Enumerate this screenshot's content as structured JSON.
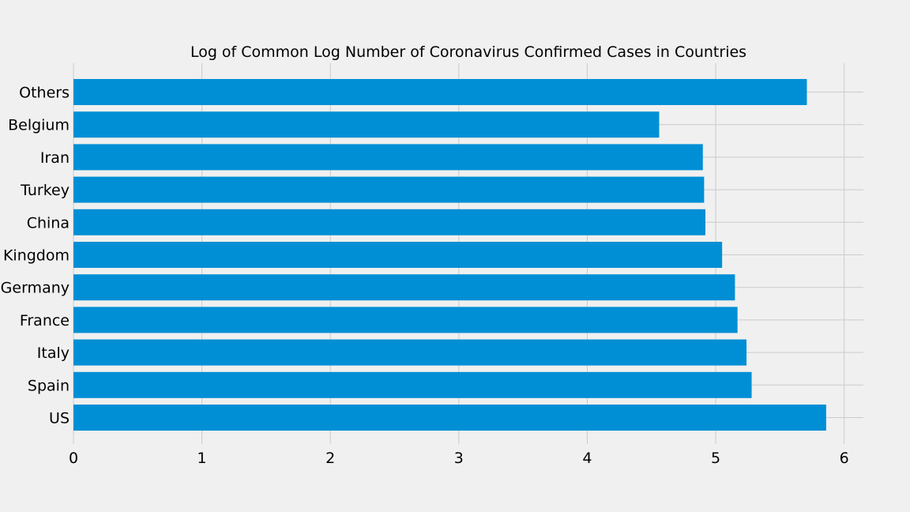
{
  "chart_data": {
    "type": "bar",
    "orientation": "horizontal",
    "title": "Log of Common Log Number of Coronavirus Confirmed Cases in Countries",
    "xlabel": "",
    "ylabel": "",
    "categories": [
      "US",
      "Spain",
      "Italy",
      "France",
      "Germany",
      "United Kingdom",
      "China",
      "Turkey",
      "Iran",
      "Belgium",
      "Others"
    ],
    "values": [
      5.86,
      5.28,
      5.24,
      5.17,
      5.15,
      5.05,
      4.92,
      4.91,
      4.9,
      4.56,
      5.71
    ],
    "xlim": [
      0,
      6.15
    ],
    "xticks": [
      0,
      1,
      2,
      3,
      4,
      5,
      6
    ],
    "grid": true,
    "bar_color": "#008fd5",
    "background": "#f0f0f0",
    "grid_color": "#cbcbcb"
  }
}
